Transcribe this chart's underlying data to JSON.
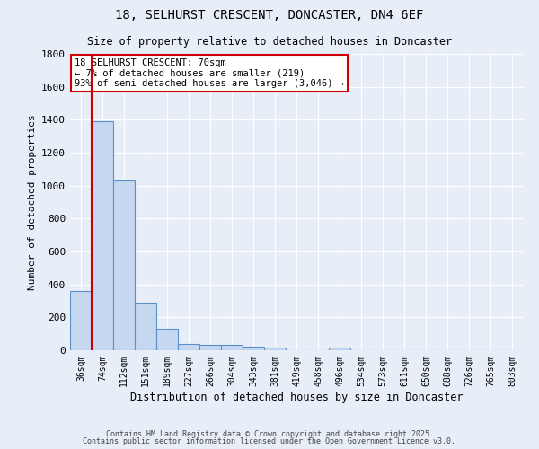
{
  "title1": "18, SELHURST CRESCENT, DONCASTER, DN4 6EF",
  "title2": "Size of property relative to detached houses in Doncaster",
  "xlabel": "Distribution of detached houses by size in Doncaster",
  "ylabel": "Number of detached properties",
  "bar_labels": [
    "36sqm",
    "74sqm",
    "112sqm",
    "151sqm",
    "189sqm",
    "227sqm",
    "266sqm",
    "304sqm",
    "343sqm",
    "381sqm",
    "419sqm",
    "458sqm",
    "496sqm",
    "534sqm",
    "573sqm",
    "611sqm",
    "650sqm",
    "688sqm",
    "726sqm",
    "765sqm",
    "803sqm"
  ],
  "bar_values": [
    360,
    1390,
    1030,
    290,
    130,
    40,
    35,
    35,
    20,
    15,
    0,
    0,
    15,
    0,
    0,
    0,
    0,
    0,
    0,
    0,
    0
  ],
  "bar_color": "#c5d8f0",
  "bar_edge_color": "#5b8fc9",
  "background_color": "#e8eef8",
  "grid_color": "#ffffff",
  "annotation_text": "18 SELHURST CRESCENT: 70sqm\n← 7% of detached houses are smaller (219)\n93% of semi-detached houses are larger (3,046) →",
  "annotation_box_color": "#ffffff",
  "annotation_border_color": "#cc0000",
  "red_line_x": 0.5,
  "ylim": [
    0,
    1800
  ],
  "yticks": [
    0,
    200,
    400,
    600,
    800,
    1000,
    1200,
    1400,
    1600,
    1800
  ],
  "footer1": "Contains HM Land Registry data © Crown copyright and database right 2025.",
  "footer2": "Contains public sector information licensed under the Open Government Licence v3.0."
}
